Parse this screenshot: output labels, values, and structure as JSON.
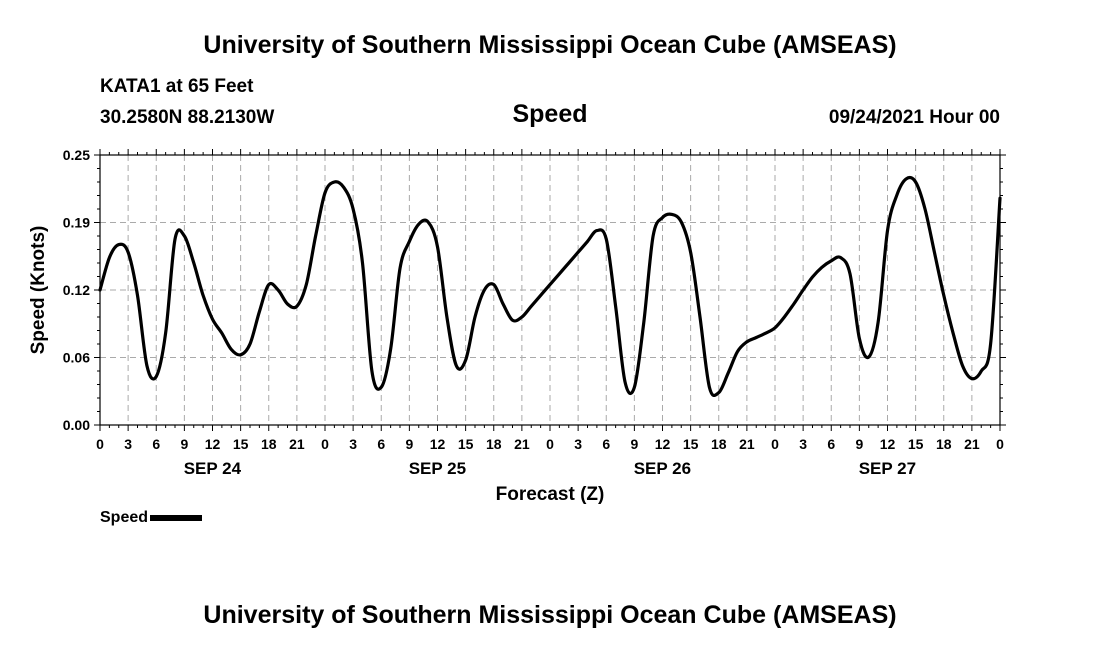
{
  "header": {
    "top_title": "University of Southern Mississippi Ocean Cube (AMSEAS)",
    "station": "KATA1 at 65 Feet",
    "coords": "30.2580N  88.2130W",
    "plot_title": "Speed",
    "datetime": "09/24/2021 Hour 00",
    "bottom_title": "University of Southern Mississippi Ocean Cube (AMSEAS)"
  },
  "legend": {
    "label": "Speed"
  },
  "chart_data": {
    "type": "line",
    "title": "Speed",
    "xlabel": "Forecast (Z)",
    "ylabel": "Speed (Knots)",
    "xlim": [
      0,
      96
    ],
    "ylim": [
      0,
      0.25
    ],
    "yticks": [
      "0.00",
      "0.06",
      "0.12",
      "0.19",
      "0.25"
    ],
    "ytick_values": [
      0,
      0.0625,
      0.125,
      0.1875,
      0.25
    ],
    "xtick_labels": [
      "0",
      "3",
      "6",
      "9",
      "12",
      "15",
      "18",
      "21",
      "0",
      "3",
      "6",
      "9",
      "12",
      "15",
      "18",
      "21",
      "0",
      "3",
      "6",
      "9",
      "12",
      "15",
      "18",
      "21",
      "0",
      "3",
      "6",
      "9",
      "12",
      "15",
      "18",
      "21",
      "0"
    ],
    "date_labels": [
      {
        "label": "SEP 24",
        "hour": 9
      },
      {
        "label": "SEP 25",
        "hour": 33
      },
      {
        "label": "SEP 26",
        "hour": 57
      },
      {
        "label": "SEP 27",
        "hour": 81
      }
    ],
    "grid": true,
    "series": [
      {
        "name": "Speed",
        "x": [
          0,
          1,
          2,
          3,
          4,
          5,
          6,
          7,
          8,
          9,
          10,
          11,
          12,
          13,
          14,
          15,
          16,
          17,
          18,
          19,
          20,
          21,
          22,
          23,
          24,
          25,
          26,
          27,
          28,
          29,
          30,
          31,
          32,
          33,
          34,
          35,
          36,
          37,
          38,
          39,
          40,
          41,
          42,
          43,
          44,
          45,
          46,
          47,
          48,
          49,
          50,
          51,
          52,
          53,
          54,
          55,
          56,
          57,
          58,
          59,
          60,
          61,
          62,
          63,
          64,
          65,
          66,
          67,
          68,
          69,
          70,
          71,
          72,
          73,
          74,
          75,
          76,
          77,
          78,
          79,
          80,
          81,
          82,
          83,
          84,
          85,
          86,
          87,
          88,
          89,
          90,
          91,
          92,
          93,
          94,
          95,
          96
        ],
        "values": [
          0.125,
          0.155,
          0.167,
          0.16,
          0.12,
          0.055,
          0.045,
          0.085,
          0.172,
          0.175,
          0.15,
          0.12,
          0.098,
          0.085,
          0.07,
          0.065,
          0.075,
          0.105,
          0.13,
          0.125,
          0.112,
          0.11,
          0.13,
          0.175,
          0.215,
          0.225,
          0.22,
          0.2,
          0.15,
          0.05,
          0.035,
          0.07,
          0.145,
          0.17,
          0.186,
          0.188,
          0.165,
          0.1,
          0.055,
          0.06,
          0.1,
          0.125,
          0.13,
          0.112,
          0.097,
          0.1,
          0.11,
          0.12,
          0.13,
          0.14,
          0.15,
          0.16,
          0.17,
          0.18,
          0.172,
          0.11,
          0.04,
          0.035,
          0.095,
          0.175,
          0.192,
          0.195,
          0.188,
          0.16,
          0.1,
          0.035,
          0.03,
          0.048,
          0.068,
          0.077,
          0.081,
          0.085,
          0.09,
          0.1,
          0.112,
          0.125,
          0.137,
          0.146,
          0.152,
          0.155,
          0.14,
          0.08,
          0.063,
          0.095,
          0.18,
          0.213,
          0.228,
          0.225,
          0.2,
          0.16,
          0.12,
          0.085,
          0.055,
          0.043,
          0.05,
          0.075,
          0.21
        ]
      }
    ]
  }
}
